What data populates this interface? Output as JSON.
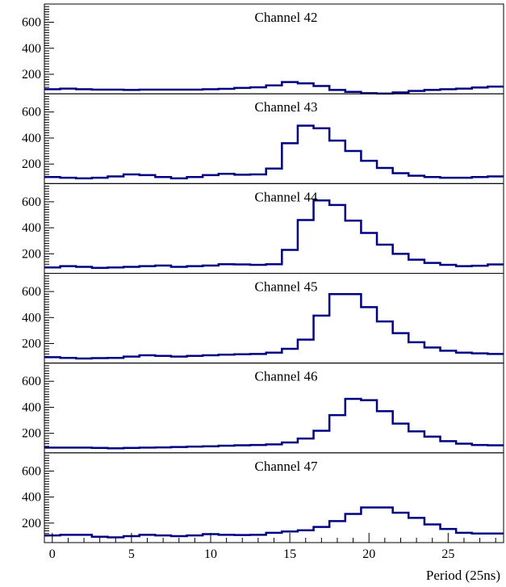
{
  "colors": {
    "line": "#000080",
    "axis": "#000000",
    "background": "#ffffff"
  },
  "chart_data": {
    "type": "line",
    "subtype": "stacked-histograms",
    "xlabel": "Period (25ns)",
    "ylabel": "",
    "xlim": [
      -0.5,
      28.5
    ],
    "ylim": [
      50,
      740
    ],
    "x_ticks": [
      0,
      5,
      10,
      15,
      20,
      25
    ],
    "y_ticks": [
      200,
      400,
      600
    ],
    "bin_edges": [
      -0.5,
      0.5,
      1.5,
      2.5,
      3.5,
      4.5,
      5.5,
      6.5,
      7.5,
      8.5,
      9.5,
      10.5,
      11.5,
      12.5,
      13.5,
      14.5,
      15.5,
      16.5,
      17.5,
      18.5,
      19.5,
      20.5,
      21.5,
      22.5,
      23.5,
      24.5,
      25.5,
      26.5,
      27.5,
      28.5
    ],
    "panels": [
      {
        "title": "Channel 42",
        "values": [
          85,
          90,
          85,
          82,
          82,
          80,
          82,
          82,
          82,
          82,
          85,
          88,
          95,
          100,
          115,
          140,
          130,
          110,
          80,
          65,
          55,
          52,
          60,
          72,
          80,
          85,
          90,
          98,
          105
        ]
      },
      {
        "title": "Channel 43",
        "values": [
          100,
          95,
          90,
          95,
          105,
          120,
          115,
          100,
          90,
          100,
          115,
          125,
          118,
          120,
          165,
          360,
          495,
          475,
          380,
          300,
          225,
          170,
          130,
          110,
          100,
          95,
          95,
          100,
          105
        ]
      },
      {
        "title": "Channel 44",
        "values": [
          95,
          105,
          100,
          92,
          95,
          100,
          105,
          110,
          100,
          105,
          110,
          120,
          118,
          115,
          120,
          230,
          460,
          610,
          575,
          455,
          360,
          270,
          200,
          155,
          130,
          115,
          105,
          108,
          118
        ]
      },
      {
        "title": "Channel 45",
        "values": [
          95,
          90,
          85,
          88,
          90,
          100,
          110,
          105,
          100,
          105,
          110,
          115,
          118,
          120,
          130,
          160,
          230,
          415,
          580,
          580,
          480,
          370,
          280,
          210,
          170,
          145,
          130,
          125,
          120
        ]
      },
      {
        "title": "Channel 46",
        "values": [
          90,
          90,
          90,
          88,
          85,
          88,
          90,
          92,
          95,
          98,
          100,
          105,
          108,
          110,
          115,
          130,
          160,
          220,
          340,
          465,
          455,
          370,
          275,
          215,
          175,
          140,
          120,
          110,
          108
        ]
      },
      {
        "title": "Channel 47",
        "values": [
          105,
          110,
          110,
          95,
          90,
          100,
          110,
          105,
          100,
          105,
          115,
          110,
          108,
          110,
          125,
          135,
          145,
          170,
          215,
          270,
          320,
          320,
          280,
          240,
          190,
          155,
          125,
          120,
          120
        ]
      }
    ]
  }
}
